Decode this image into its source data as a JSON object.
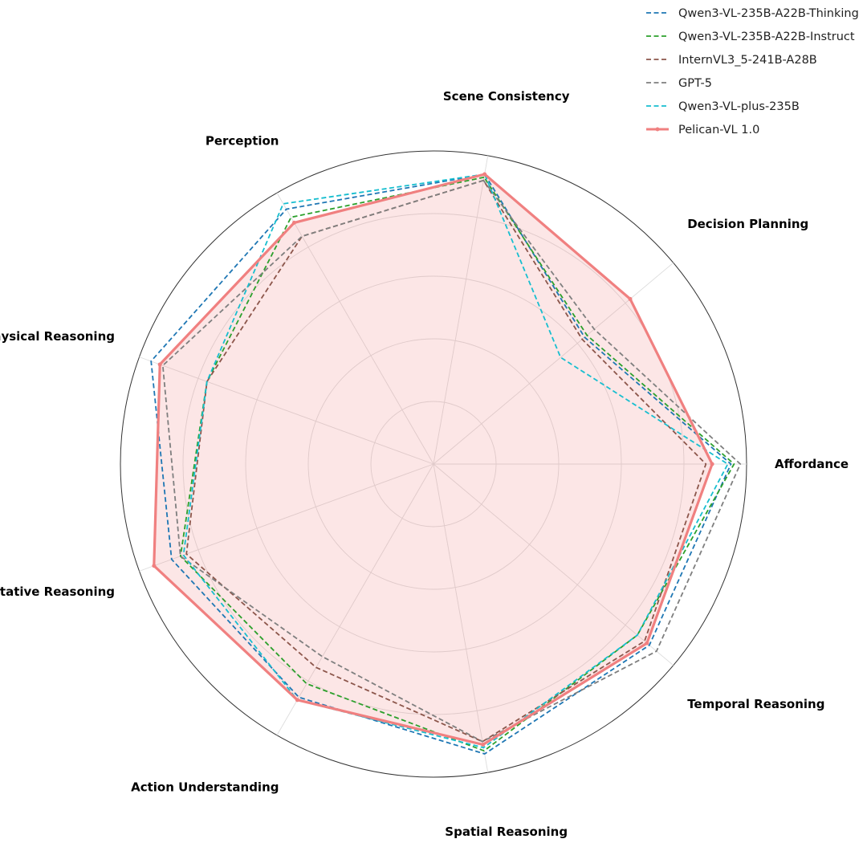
{
  "chart_data": {
    "type": "radar",
    "title": "",
    "axes": [
      "Scene Consistency",
      "Perception",
      "Physical Reasoning",
      "Quantitative Reasoning",
      "Action Understanding",
      "Spatial Reasoning",
      "Temporal Reasoning",
      "Affordance",
      "Decision Planning"
    ],
    "range": [
      0,
      1
    ],
    "rings": 5,
    "legend_position": "top-right",
    "series": [
      {
        "name": "Qwen3-VL-235B-A22B-Thinking",
        "color": "#1f77b4",
        "style": "dashed",
        "values": [
          0.94,
          0.94,
          0.96,
          0.89,
          0.86,
          0.94,
          0.9,
          0.95,
          0.63
        ]
      },
      {
        "name": "Qwen3-VL-235B-A22B-Instruct",
        "color": "#2ca02c",
        "style": "dashed",
        "values": [
          0.93,
          0.91,
          0.77,
          0.86,
          0.81,
          0.93,
          0.85,
          0.96,
          0.64
        ]
      },
      {
        "name": "InternVL3_5-241B-A28B",
        "color": "#8c564b",
        "style": "dashed",
        "values": [
          0.92,
          0.84,
          0.77,
          0.84,
          0.75,
          0.9,
          0.88,
          0.87,
          0.62
        ]
      },
      {
        "name": "GPT-5",
        "color": "#7f7f7f",
        "style": "dashed",
        "values": [
          0.92,
          0.84,
          0.92,
          0.86,
          0.71,
          0.9,
          0.93,
          0.98,
          0.67
        ]
      },
      {
        "name": "Qwen3-VL-plus-235B",
        "color": "#17becf",
        "style": "dashed",
        "values": [
          0.94,
          0.96,
          0.77,
          0.85,
          0.87,
          0.92,
          0.85,
          0.94,
          0.53
        ]
      },
      {
        "name": "Pelican-VL 1.0",
        "color": "#f08080",
        "style": "solid",
        "values": [
          0.94,
          0.89,
          0.93,
          0.95,
          0.87,
          0.91,
          0.89,
          0.89,
          0.82
        ]
      }
    ]
  }
}
